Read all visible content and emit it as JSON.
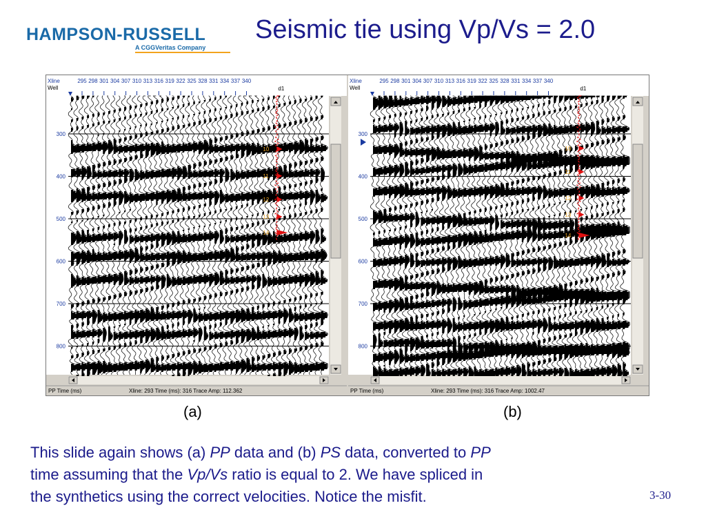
{
  "logo": {
    "main": "HAMPSON-RUSSELL",
    "sub": "A CGGVeritas Company"
  },
  "title": "Seismic tie using Vp/Vs = 2.0",
  "panels": [
    {
      "id": "a",
      "header": {
        "row1": "Xline",
        "row2": "Well",
        "marker": "d1"
      },
      "xlines": [
        "295",
        "298",
        "301",
        "304",
        "307",
        "310",
        "313",
        "316",
        "319",
        "322",
        "325",
        "328",
        "331",
        "334",
        "337",
        "340"
      ],
      "times": [
        "300",
        "400",
        "500",
        "600",
        "700",
        "800"
      ],
      "horizons": [
        "10",
        "11",
        "12",
        "13",
        "14"
      ],
      "status": {
        "label": "PP Time (ms)",
        "readout": "Xline: 293  Time (ms): 316  Trace Amp: 112.362"
      },
      "caption": "(a)"
    },
    {
      "id": "b",
      "header": {
        "row1": "Xline",
        "row2": "Well",
        "marker": "d1"
      },
      "xlines": [
        "295",
        "298",
        "301",
        "304",
        "307",
        "310",
        "313",
        "316",
        "319",
        "322",
        "325",
        "328",
        "331",
        "334",
        "337",
        "340"
      ],
      "times": [
        "300",
        "400",
        "500",
        "600",
        "700",
        "800"
      ],
      "horizons": [
        "10",
        "11",
        "12",
        "13",
        "14"
      ],
      "status": {
        "label": "PP Time (ms)",
        "readout": "Xline: 293  Time (ms): 316  Trace Amp: 1002.47"
      },
      "caption": "(b)"
    }
  ],
  "body": {
    "p1": "This slide again shows (a) ",
    "pp1": "PP",
    "p2": " data and (b) ",
    "ps": "PS",
    "p3": " data, converted to ",
    "pp2": "PP",
    "p4": "time assuming that the ",
    "vpvs": "Vp/Vs",
    "p5": " ratio is equal to 2.  We have spliced in",
    "p6": "the synthetics using the correct velocities.  Notice the misfit."
  },
  "page_number": "3-30",
  "colors": {
    "title": "#1c1c8c",
    "logo": "#1a6aa8",
    "logo_accent": "#f3a31c",
    "well_log": "#e01010",
    "horizon_label": "#e8a020",
    "time_label": "#1a3aa0"
  }
}
